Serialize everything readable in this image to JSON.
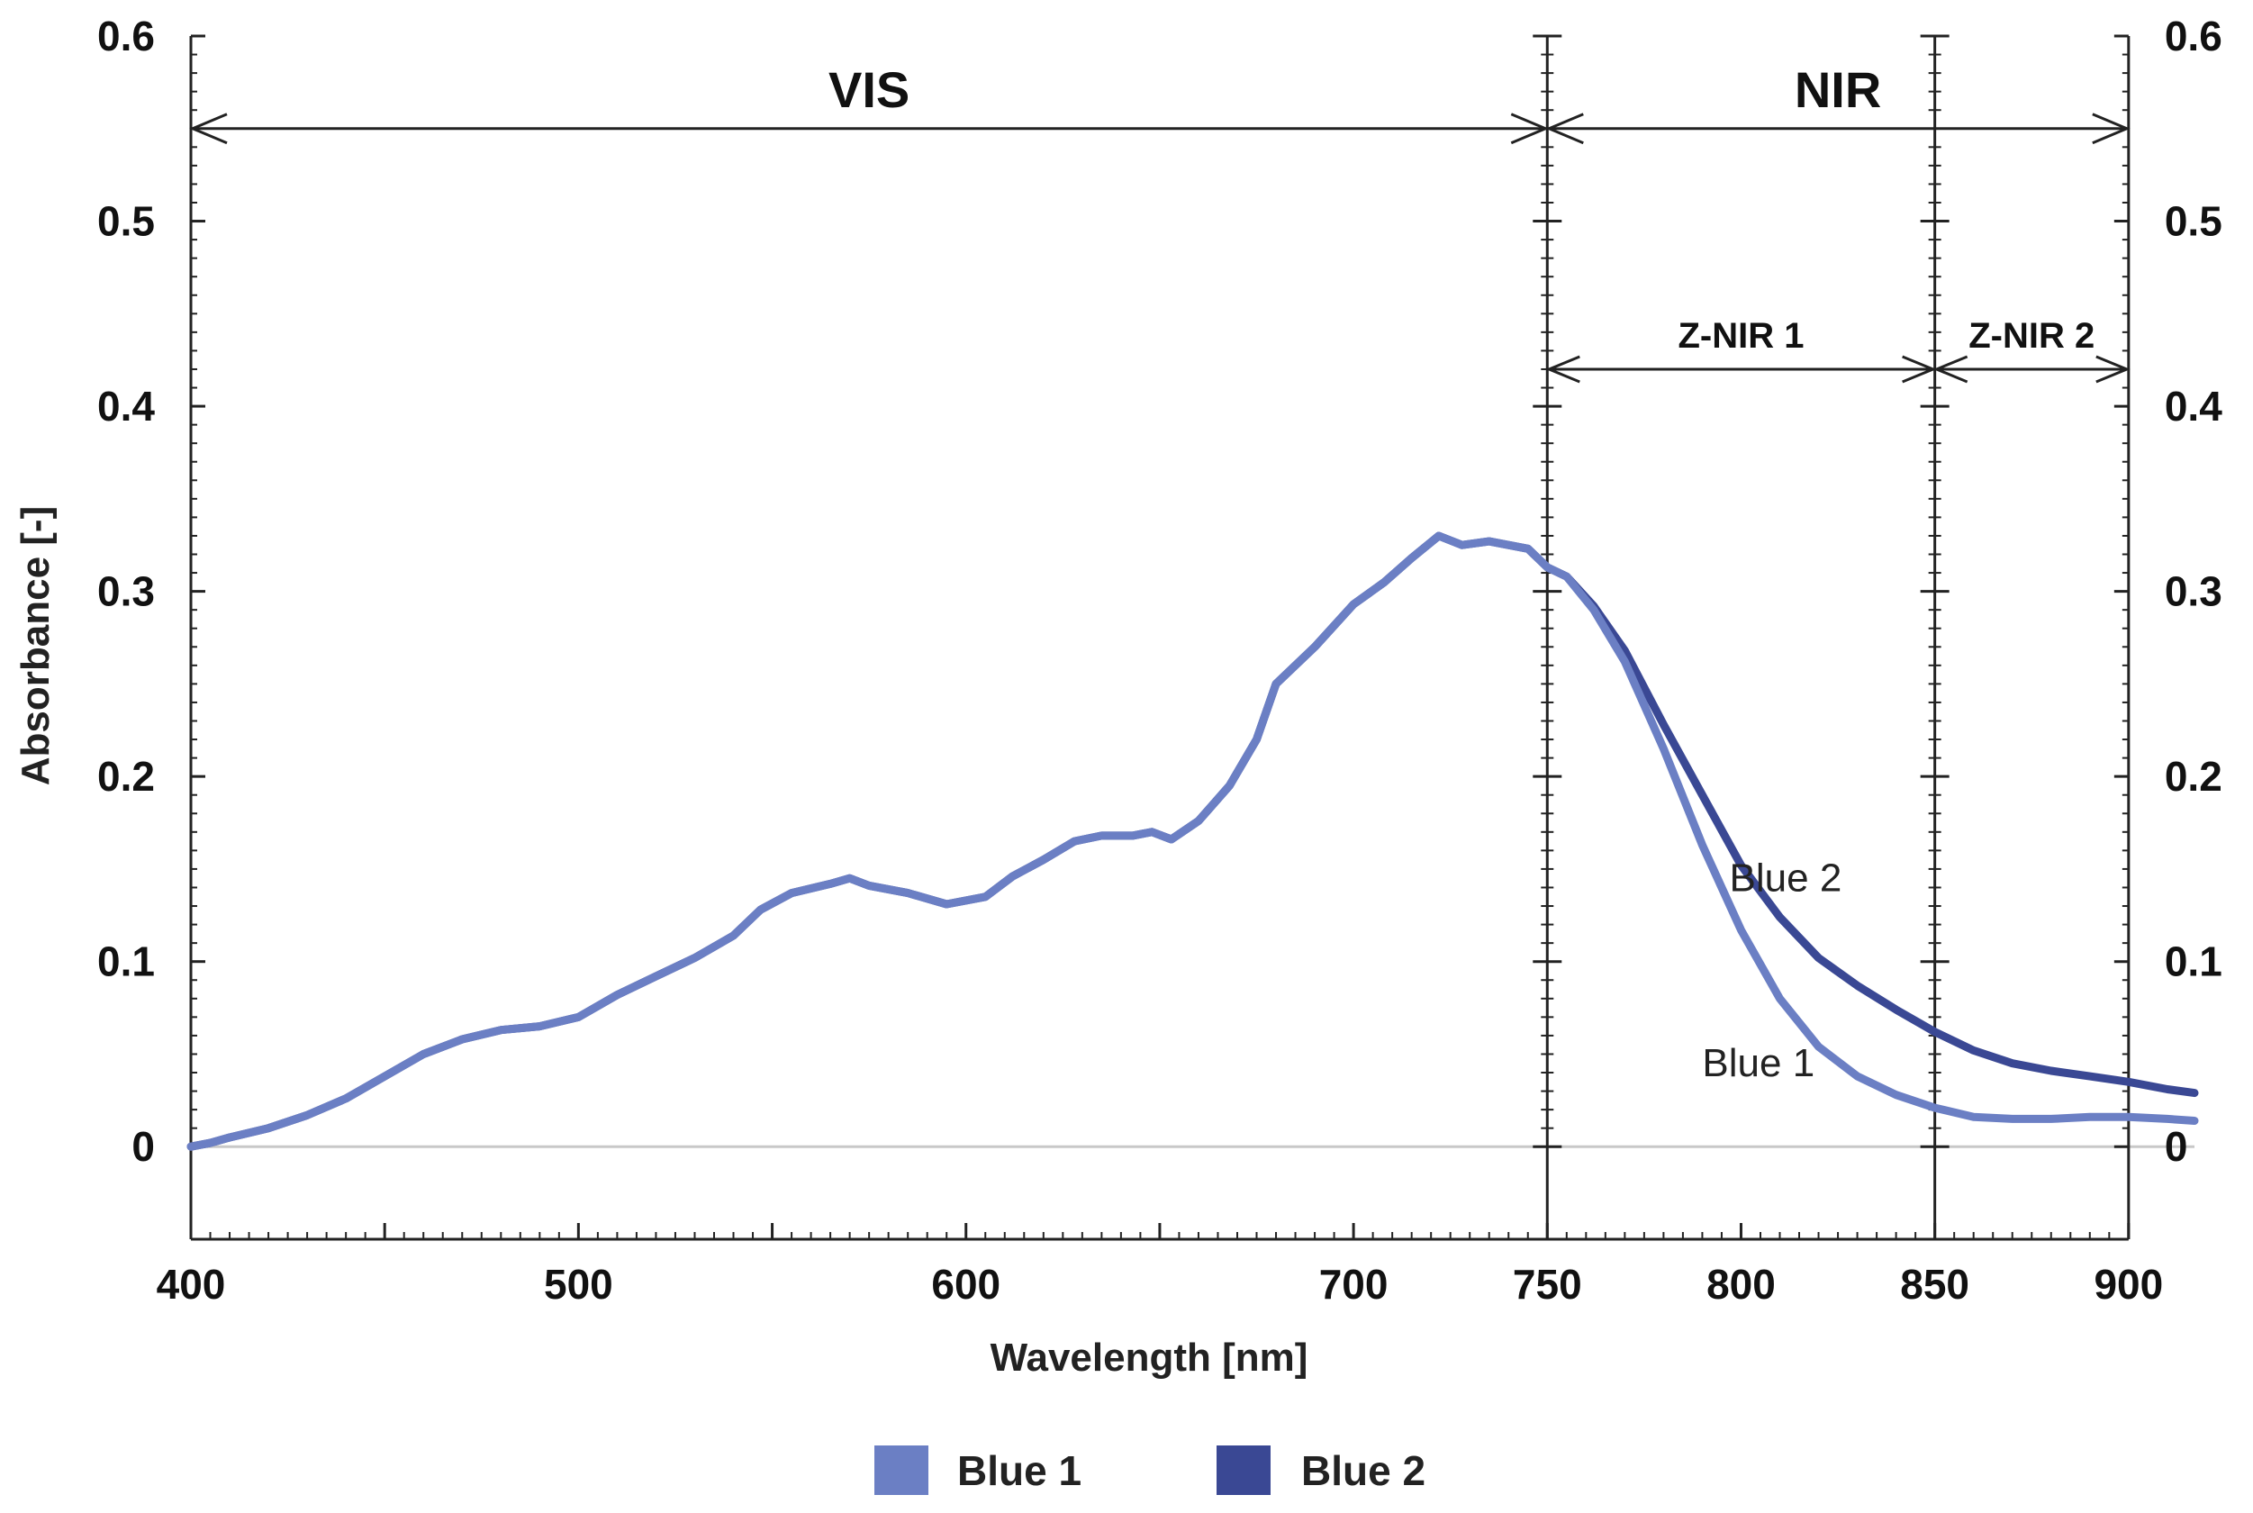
{
  "chart_data": {
    "type": "line",
    "xlabel": "Wavelength [nm]",
    "ylabel": "Absorbance [-]",
    "xlim": [
      400,
      917
    ],
    "ylim": [
      -0.05,
      0.6
    ],
    "x_ticks": [
      400,
      500,
      600,
      700,
      750,
      800,
      850,
      900
    ],
    "y_ticks": [
      0,
      0.1,
      0.2,
      0.3,
      0.4,
      0.5,
      0.6
    ],
    "y_tick_labels": [
      "0",
      "0.1",
      "0.2",
      "0.3",
      "0.4",
      "0.5",
      "0.6"
    ],
    "right_axis": true,
    "baseline": 0,
    "dividers": [
      750,
      850
    ],
    "regions": [
      {
        "label": "VIS",
        "from": 400,
        "to": 750,
        "y": 0.55,
        "size": "large"
      },
      {
        "label": "NIR",
        "from": 750,
        "to": 900,
        "y": 0.55,
        "size": "large"
      },
      {
        "label": "Z-NIR 1",
        "from": 750,
        "to": 850,
        "y": 0.42,
        "size": "small"
      },
      {
        "label": "Z-NIR 2",
        "from": 850,
        "to": 900,
        "y": 0.42,
        "size": "small"
      }
    ],
    "series": [
      {
        "name": "Blue 1",
        "color": "#6b7fc4",
        "points": [
          [
            400,
            0
          ],
          [
            405,
            0.002
          ],
          [
            410,
            0.005
          ],
          [
            420,
            0.01
          ],
          [
            430,
            0.017
          ],
          [
            440,
            0.026
          ],
          [
            450,
            0.038
          ],
          [
            460,
            0.05
          ],
          [
            470,
            0.058
          ],
          [
            480,
            0.063
          ],
          [
            490,
            0.065
          ],
          [
            500,
            0.07
          ],
          [
            510,
            0.082
          ],
          [
            520,
            0.092
          ],
          [
            530,
            0.102
          ],
          [
            540,
            0.114
          ],
          [
            547,
            0.128
          ],
          [
            555,
            0.137
          ],
          [
            565,
            0.142
          ],
          [
            570,
            0.145
          ],
          [
            575,
            0.141
          ],
          [
            585,
            0.137
          ],
          [
            595,
            0.131
          ],
          [
            605,
            0.135
          ],
          [
            612,
            0.146
          ],
          [
            620,
            0.155
          ],
          [
            628,
            0.165
          ],
          [
            635,
            0.168
          ],
          [
            643,
            0.168
          ],
          [
            648,
            0.17
          ],
          [
            653,
            0.166
          ],
          [
            660,
            0.176
          ],
          [
            668,
            0.195
          ],
          [
            675,
            0.22
          ],
          [
            680,
            0.25
          ],
          [
            690,
            0.27
          ],
          [
            700,
            0.293
          ],
          [
            708,
            0.305
          ],
          [
            715,
            0.318
          ],
          [
            722,
            0.33
          ],
          [
            728,
            0.325
          ],
          [
            735,
            0.327
          ],
          [
            745,
            0.323
          ],
          [
            750,
            0.313
          ],
          [
            755,
            0.308
          ],
          [
            762,
            0.29
          ],
          [
            770,
            0.262
          ],
          [
            780,
            0.215
          ],
          [
            790,
            0.163
          ],
          [
            800,
            0.117
          ],
          [
            810,
            0.08
          ],
          [
            820,
            0.054
          ],
          [
            830,
            0.038
          ],
          [
            840,
            0.028
          ],
          [
            850,
            0.021
          ],
          [
            860,
            0.016
          ],
          [
            870,
            0.015
          ],
          [
            880,
            0.015
          ],
          [
            890,
            0.016
          ],
          [
            900,
            0.016
          ],
          [
            910,
            0.015
          ],
          [
            917,
            0.014
          ]
        ]
      },
      {
        "name": "Blue 2",
        "color": "#3a4894",
        "points": [
          [
            400,
            0
          ],
          [
            405,
            0.002
          ],
          [
            410,
            0.005
          ],
          [
            420,
            0.01
          ],
          [
            430,
            0.017
          ],
          [
            440,
            0.026
          ],
          [
            450,
            0.038
          ],
          [
            460,
            0.05
          ],
          [
            470,
            0.058
          ],
          [
            480,
            0.063
          ],
          [
            490,
            0.065
          ],
          [
            500,
            0.07
          ],
          [
            510,
            0.082
          ],
          [
            520,
            0.092
          ],
          [
            530,
            0.102
          ],
          [
            540,
            0.114
          ],
          [
            547,
            0.128
          ],
          [
            555,
            0.137
          ],
          [
            565,
            0.142
          ],
          [
            570,
            0.145
          ],
          [
            575,
            0.141
          ],
          [
            585,
            0.137
          ],
          [
            595,
            0.131
          ],
          [
            605,
            0.135
          ],
          [
            612,
            0.146
          ],
          [
            620,
            0.155
          ],
          [
            628,
            0.165
          ],
          [
            635,
            0.168
          ],
          [
            643,
            0.168
          ],
          [
            648,
            0.17
          ],
          [
            653,
            0.166
          ],
          [
            660,
            0.176
          ],
          [
            668,
            0.195
          ],
          [
            675,
            0.22
          ],
          [
            680,
            0.25
          ],
          [
            690,
            0.27
          ],
          [
            700,
            0.293
          ],
          [
            708,
            0.305
          ],
          [
            715,
            0.318
          ],
          [
            722,
            0.33
          ],
          [
            728,
            0.325
          ],
          [
            735,
            0.327
          ],
          [
            745,
            0.323
          ],
          [
            750,
            0.313
          ],
          [
            755,
            0.308
          ],
          [
            762,
            0.292
          ],
          [
            770,
            0.268
          ],
          [
            780,
            0.228
          ],
          [
            790,
            0.19
          ],
          [
            800,
            0.152
          ],
          [
            810,
            0.124
          ],
          [
            820,
            0.102
          ],
          [
            830,
            0.087
          ],
          [
            840,
            0.074
          ],
          [
            850,
            0.062
          ],
          [
            860,
            0.052
          ],
          [
            870,
            0.045
          ],
          [
            880,
            0.041
          ],
          [
            890,
            0.038
          ],
          [
            900,
            0.035
          ],
          [
            910,
            0.031
          ],
          [
            917,
            0.029
          ]
        ]
      }
    ],
    "curve_labels": [
      {
        "text": "Blue 2",
        "x": 797,
        "y": 0.138
      },
      {
        "text": "Blue 1",
        "x": 790,
        "y": 0.038
      }
    ],
    "legend": {
      "position": "bottom-center",
      "items": [
        {
          "label": "Blue 1",
          "color": "#6b7fc4"
        },
        {
          "label": "Blue 2",
          "color": "#3a4894"
        }
      ]
    }
  }
}
